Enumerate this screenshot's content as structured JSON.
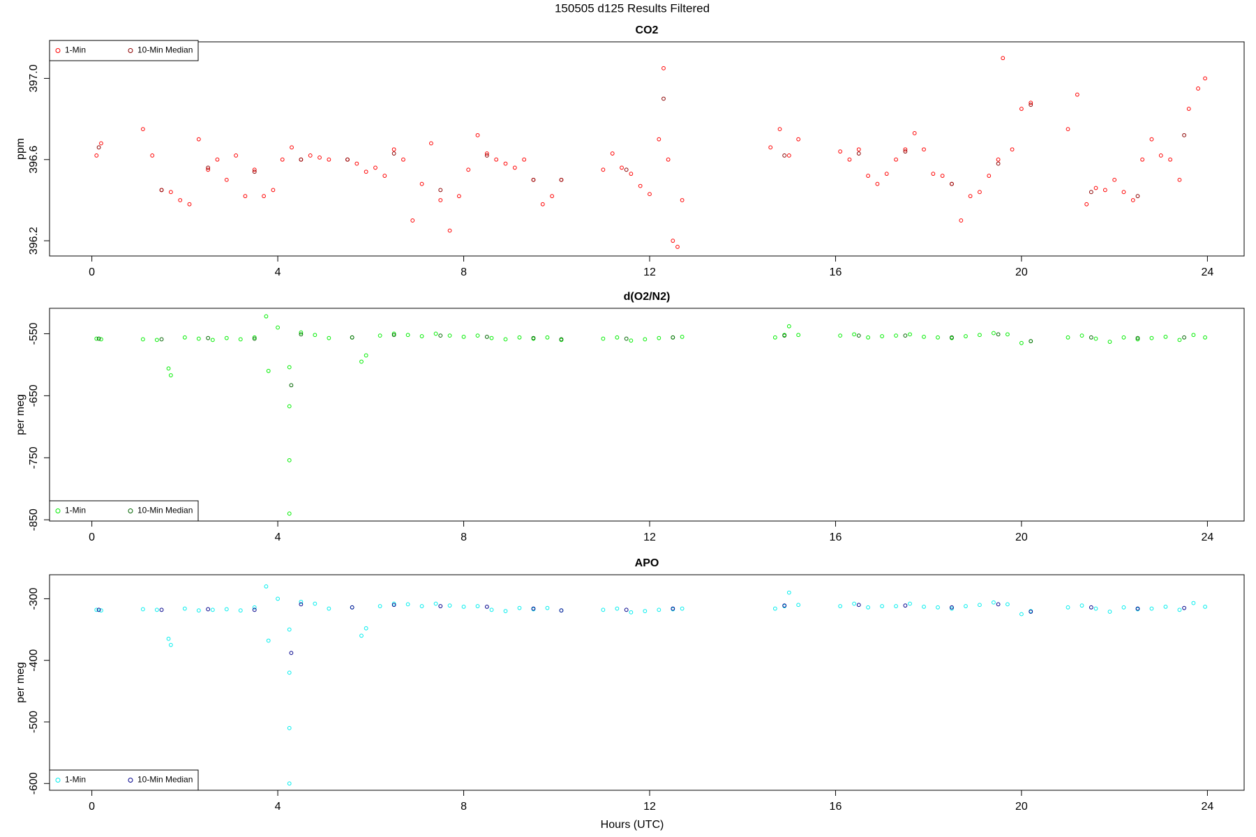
{
  "title": "150505   d125   Results Filtered",
  "xlabel": "Hours (UTC)",
  "chart_data": [
    {
      "type": "scatter",
      "title": "CO2",
      "ylabel": "ppm",
      "legend": "topleft",
      "xlim": [
        -0.91,
        24.79
      ],
      "xticks": [
        0,
        4,
        8,
        12,
        16,
        20,
        24
      ],
      "ylim": [
        396.125,
        397.18
      ],
      "yticks": [
        396.2,
        396.6,
        {
          "value": 397,
          "label": "397.0"
        }
      ],
      "series": [
        {
          "name": "1-Min",
          "color": "#ff0000",
          "x": [
            0.1,
            0.2,
            1.1,
            1.3,
            1.5,
            1.7,
            1.9,
            2.1,
            2.3,
            2.5,
            2.7,
            2.9,
            3.1,
            3.3,
            3.5,
            3.7,
            3.9,
            4.1,
            4.3,
            4.5,
            4.7,
            4.9,
            5.1,
            5.5,
            5.7,
            5.9,
            6.1,
            6.3,
            6.5,
            6.7,
            6.9,
            7.1,
            7.3,
            7.5,
            7.7,
            7.9,
            8.1,
            8.3,
            8.5,
            8.7,
            8.9,
            9.1,
            9.3,
            9.5,
            9.7,
            9.9,
            10.1,
            11.0,
            11.2,
            11.4,
            11.6,
            11.8,
            12.0,
            12.2,
            12.3,
            12.4,
            12.5,
            12.6,
            12.7,
            14.6,
            14.8,
            15.0,
            15.2,
            16.1,
            16.3,
            16.5,
            16.7,
            16.9,
            17.1,
            17.3,
            17.5,
            17.7,
            17.9,
            18.1,
            18.3,
            18.5,
            18.7,
            18.9,
            19.1,
            19.3,
            19.5,
            19.6,
            19.8,
            20.0,
            20.2,
            21.0,
            21.2,
            21.4,
            21.6,
            21.8,
            22.0,
            22.2,
            22.4,
            22.6,
            22.8,
            23.0,
            23.2,
            23.4,
            23.6,
            23.8,
            23.95
          ],
          "values": [
            396.62,
            396.68,
            396.75,
            396.62,
            396.45,
            396.44,
            396.4,
            396.38,
            396.7,
            396.55,
            396.6,
            396.5,
            396.62,
            396.42,
            396.55,
            396.42,
            396.45,
            396.6,
            396.66,
            396.6,
            396.62,
            396.61,
            396.6,
            396.6,
            396.58,
            396.54,
            396.56,
            396.52,
            396.65,
            396.6,
            396.3,
            396.48,
            396.68,
            396.4,
            396.25,
            396.42,
            396.55,
            396.72,
            396.63,
            396.6,
            396.58,
            396.56,
            396.6,
            396.5,
            396.38,
            396.42,
            396.5,
            396.55,
            396.63,
            396.56,
            396.53,
            396.47,
            396.43,
            396.7,
            397.05,
            396.6,
            396.2,
            396.17,
            396.4,
            396.66,
            396.75,
            396.62,
            396.7,
            396.64,
            396.6,
            396.65,
            396.52,
            396.48,
            396.53,
            396.6,
            396.65,
            396.73,
            396.65,
            396.53,
            396.52,
            396.48,
            396.3,
            396.42,
            396.44,
            396.52,
            396.6,
            397.1,
            396.65,
            396.85,
            396.88,
            396.75,
            396.92,
            396.38,
            396.46,
            396.45,
            396.5,
            396.44,
            396.4,
            396.6,
            396.7,
            396.62,
            396.6,
            396.5,
            396.85,
            396.95,
            397.0
          ]
        },
        {
          "name": "10-Min Median",
          "color": "#8b0000",
          "x": [
            0.15,
            1.5,
            2.5,
            3.5,
            4.5,
            5.5,
            6.5,
            7.5,
            8.5,
            9.5,
            10.1,
            11.5,
            12.3,
            14.9,
            16.5,
            17.5,
            18.5,
            19.5,
            20.2,
            21.5,
            22.5,
            23.5
          ],
          "values": [
            396.66,
            396.45,
            396.56,
            396.54,
            396.6,
            396.6,
            396.63,
            396.45,
            396.62,
            396.5,
            396.5,
            396.55,
            396.9,
            396.62,
            396.63,
            396.64,
            396.48,
            396.58,
            396.87,
            396.44,
            396.42,
            396.72
          ]
        }
      ]
    },
    {
      "type": "scatter",
      "title": "d(O2/N2)",
      "ylabel": "per meg",
      "legend": "bottomleft",
      "xlim": [
        -0.91,
        24.79
      ],
      "xticks": [
        0,
        4,
        8,
        12,
        16,
        20,
        24
      ],
      "ylim": [
        -852,
        -509
      ],
      "yticks": [
        -550,
        -650,
        -750,
        -850
      ],
      "series": [
        {
          "name": "1-Min",
          "color": "#00ee00",
          "x": [
            0.1,
            0.2,
            1.1,
            1.4,
            1.65,
            1.7,
            2.0,
            2.3,
            2.6,
            2.9,
            3.2,
            3.5,
            3.75,
            3.8,
            4.0,
            4.25,
            4.25,
            4.25,
            4.25,
            4.5,
            4.8,
            5.1,
            5.6,
            5.8,
            5.9,
            6.2,
            6.5,
            6.8,
            7.1,
            7.4,
            7.7,
            8.0,
            8.3,
            8.6,
            8.9,
            9.2,
            9.5,
            9.8,
            10.1,
            11.0,
            11.3,
            11.6,
            11.9,
            12.2,
            12.5,
            12.7,
            14.7,
            14.9,
            15.0,
            15.2,
            16.1,
            16.4,
            16.7,
            17.0,
            17.3,
            17.6,
            17.9,
            18.2,
            18.5,
            18.8,
            19.1,
            19.4,
            19.7,
            20.0,
            20.2,
            21.0,
            21.3,
            21.6,
            21.9,
            22.2,
            22.5,
            22.8,
            23.1,
            23.4,
            23.7,
            23.95
          ],
          "values": [
            -558,
            -559,
            -559,
            -560,
            -606,
            -617,
            -556,
            -558,
            -560,
            -557,
            -559,
            -556,
            -522,
            -610,
            -540,
            -604,
            -667,
            -754,
            -840,
            -548,
            -552,
            -557,
            -556,
            -595,
            -585,
            -553,
            -550,
            -552,
            -554,
            -550,
            -553,
            -555,
            -553,
            -557,
            -559,
            -556,
            -558,
            -556,
            -560,
            -558,
            -556,
            -561,
            -559,
            -557,
            -556,
            -555,
            -556,
            -552,
            -538,
            -552,
            -553,
            -551,
            -556,
            -554,
            -553,
            -551,
            -555,
            -556,
            -557,
            -554,
            -552,
            -549,
            -551,
            -565,
            -562,
            -556,
            -553,
            -558,
            -563,
            -556,
            -559,
            -557,
            -555,
            -560,
            -552,
            -556
          ]
        },
        {
          "name": "10-Min Median",
          "color": "#006400",
          "x": [
            0.15,
            1.5,
            2.5,
            3.5,
            4.29,
            4.5,
            5.6,
            6.5,
            7.5,
            8.5,
            9.5,
            10.1,
            11.5,
            12.5,
            14.9,
            16.5,
            17.5,
            18.5,
            19.5,
            20.2,
            21.5,
            22.5,
            23.5
          ],
          "values": [
            -558,
            -559,
            -557,
            -558,
            -633,
            -551,
            -556,
            -552,
            -553,
            -555,
            -557,
            -559,
            -558,
            -556,
            -553,
            -553,
            -553,
            -556,
            -551,
            -562,
            -556,
            -557,
            -556
          ]
        }
      ]
    },
    {
      "type": "scatter",
      "title": "APO",
      "ylabel": "per meg",
      "legend": "bottomleft",
      "xlim": [
        -0.91,
        24.79
      ],
      "xticks": [
        0,
        4,
        8,
        12,
        16,
        20,
        24
      ],
      "ylim": [
        -611,
        -261
      ],
      "yticks": [
        -300,
        -400,
        -500,
        -600
      ],
      "series": [
        {
          "name": "1-Min",
          "color": "#00eeee",
          "x": [
            0.1,
            0.2,
            1.1,
            1.4,
            1.65,
            1.7,
            2.0,
            2.3,
            2.6,
            2.9,
            3.2,
            3.5,
            3.75,
            3.8,
            4.0,
            4.25,
            4.25,
            4.25,
            4.25,
            4.5,
            4.8,
            5.1,
            5.6,
            5.8,
            5.9,
            6.2,
            6.5,
            6.8,
            7.1,
            7.4,
            7.7,
            8.0,
            8.3,
            8.6,
            8.9,
            9.2,
            9.5,
            9.8,
            10.1,
            11.0,
            11.3,
            11.6,
            11.9,
            12.2,
            12.5,
            12.7,
            14.7,
            14.9,
            15.0,
            15.2,
            16.1,
            16.4,
            16.7,
            17.0,
            17.3,
            17.6,
            17.9,
            18.2,
            18.5,
            18.8,
            19.1,
            19.4,
            19.7,
            20.0,
            20.2,
            21.0,
            21.3,
            21.6,
            21.9,
            22.2,
            22.5,
            22.8,
            23.1,
            23.4,
            23.7,
            23.95
          ],
          "values": [
            -318,
            -319,
            -317,
            -318,
            -365,
            -375,
            -316,
            -319,
            -318,
            -317,
            -319,
            -314,
            -280,
            -368,
            -300,
            -350,
            -420,
            -510,
            -600,
            -305,
            -308,
            -316,
            -314,
            -360,
            -348,
            -312,
            -308,
            -309,
            -312,
            -308,
            -311,
            -313,
            -312,
            -318,
            -320,
            -315,
            -317,
            -315,
            -319,
            -318,
            -316,
            -322,
            -320,
            -318,
            -317,
            -316,
            -316,
            -312,
            -290,
            -310,
            -312,
            -308,
            -314,
            -312,
            -312,
            -308,
            -313,
            -314,
            -316,
            -312,
            -310,
            -306,
            -309,
            -325,
            -320,
            -314,
            -311,
            -316,
            -321,
            -314,
            -317,
            -316,
            -313,
            -318,
            -307,
            -313
          ]
        },
        {
          "name": "10-Min Median",
          "color": "#00008b",
          "x": [
            0.15,
            1.5,
            2.5,
            3.5,
            4.29,
            4.5,
            5.6,
            6.5,
            7.5,
            8.5,
            9.5,
            10.1,
            11.5,
            12.5,
            14.9,
            16.5,
            17.5,
            18.5,
            19.5,
            20.2,
            21.5,
            22.5,
            23.5
          ],
          "values": [
            -318,
            -318,
            -317,
            -318,
            -388,
            -309,
            -314,
            -310,
            -312,
            -313,
            -316,
            -319,
            -318,
            -316,
            -311,
            -310,
            -311,
            -314,
            -309,
            -321,
            -314,
            -316,
            -315
          ]
        }
      ]
    }
  ]
}
